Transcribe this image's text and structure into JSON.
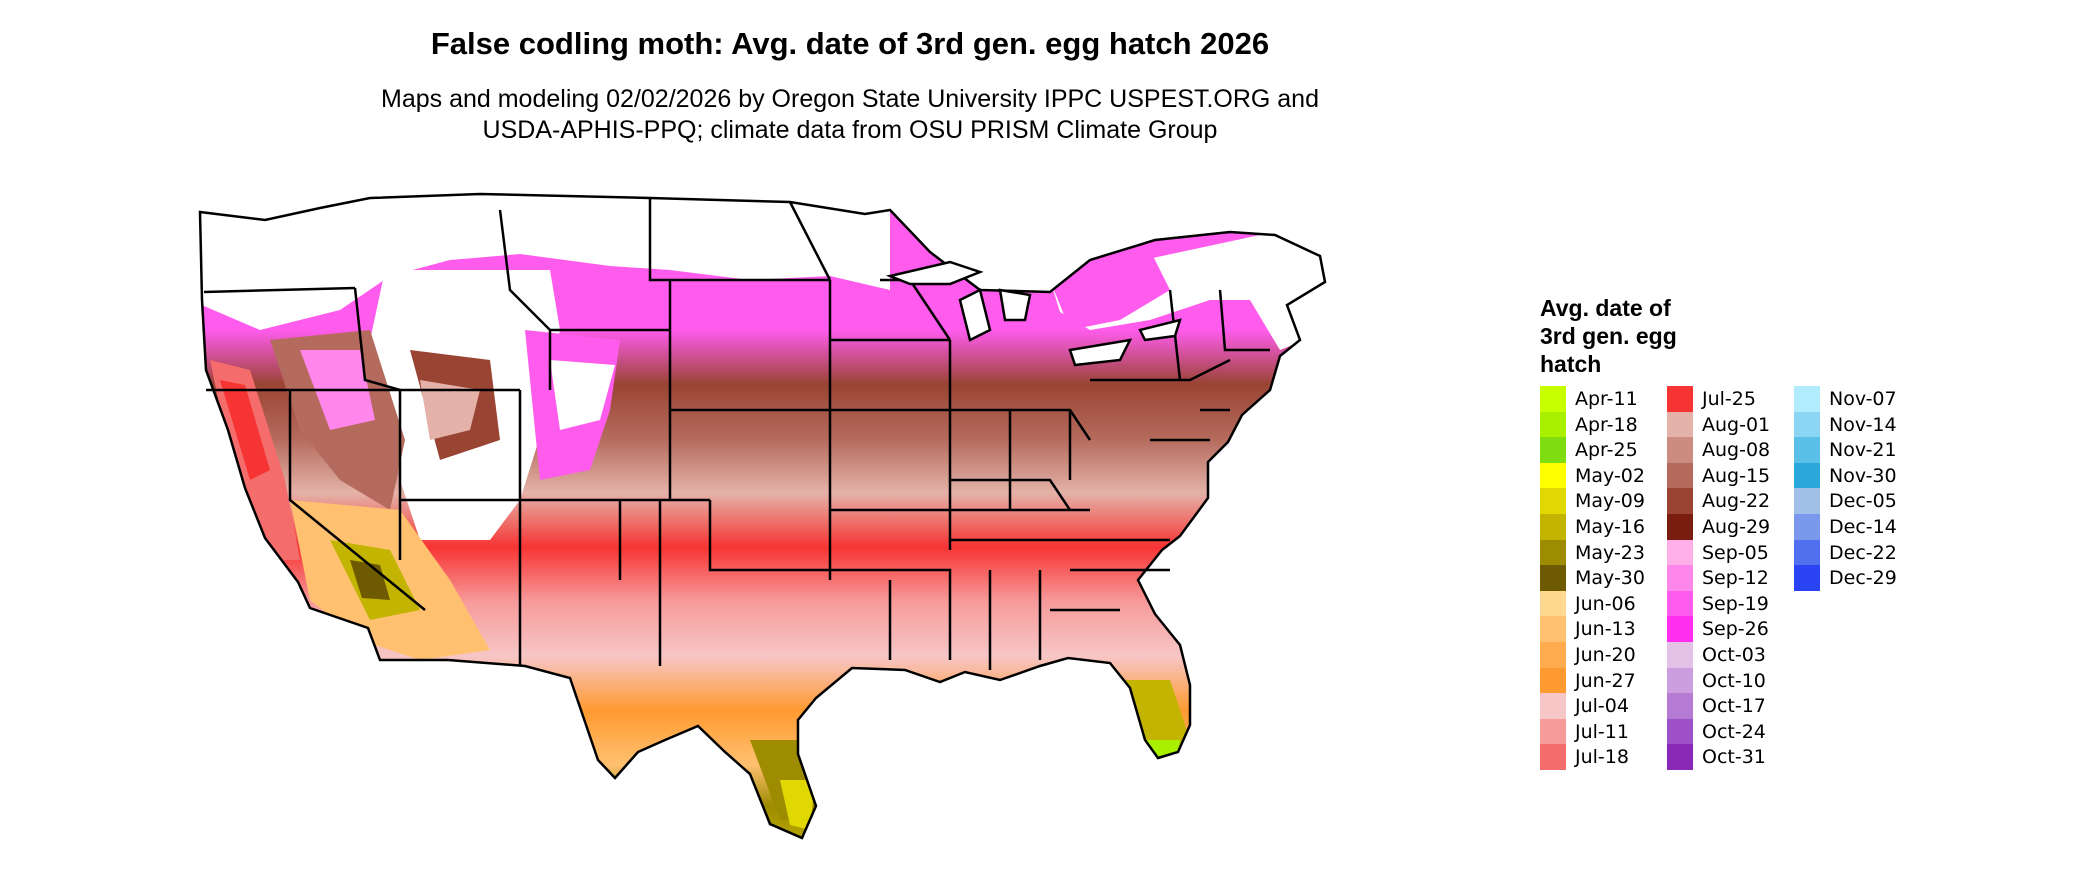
{
  "title": "False codling moth: Avg. date of 3rd gen. egg hatch 2026",
  "subtitle_line1": "Maps and modeling 02/02/2026 by Oregon State University IPPC USPEST.ORG and",
  "subtitle_line2": "USDA-APHIS-PPQ; climate data from OSU PRISM Climate Group",
  "legend": {
    "title_line1": "Avg. date of",
    "title_line2": "3rd gen. egg",
    "title_line3": "hatch",
    "columns": [
      [
        {
          "label": "Apr-11",
          "color": "#c8ff00"
        },
        {
          "label": "Apr-18",
          "color": "#a8f000"
        },
        {
          "label": "Apr-25",
          "color": "#7fdc10"
        },
        {
          "label": "May-02",
          "color": "#ffff00"
        },
        {
          "label": "May-09",
          "color": "#e0d800"
        },
        {
          "label": "May-16",
          "color": "#c2b400"
        },
        {
          "label": "May-23",
          "color": "#9e8c00"
        },
        {
          "label": "May-30",
          "color": "#6e5a00"
        },
        {
          "label": "Jun-06",
          "color": "#ffd890"
        },
        {
          "label": "Jun-13",
          "color": "#ffc070"
        },
        {
          "label": "Jun-20",
          "color": "#ffab4e"
        },
        {
          "label": "Jun-27",
          "color": "#ff9a30"
        },
        {
          "label": "Jul-04",
          "color": "#f7c6c6"
        },
        {
          "label": "Jul-11",
          "color": "#f79a9a"
        },
        {
          "label": "Jul-18",
          "color": "#f56c6c"
        }
      ],
      [
        {
          "label": "Jul-25",
          "color": "#f73434"
        },
        {
          "label": "Aug-01",
          "color": "#e4b2a8"
        },
        {
          "label": "Aug-08",
          "color": "#cc8c80"
        },
        {
          "label": "Aug-15",
          "color": "#b46a5c"
        },
        {
          "label": "Aug-22",
          "color": "#9a4434"
        },
        {
          "label": "Aug-29",
          "color": "#7a1c10"
        },
        {
          "label": "Sep-05",
          "color": "#ffb0e8"
        },
        {
          "label": "Sep-12",
          "color": "#ff86ea"
        },
        {
          "label": "Sep-19",
          "color": "#ff5cee"
        },
        {
          "label": "Sep-26",
          "color": "#ff2ef0"
        },
        {
          "label": "Oct-03",
          "color": "#e4c2e8"
        },
        {
          "label": "Oct-10",
          "color": "#cc9ee0"
        },
        {
          "label": "Oct-17",
          "color": "#b47ad4"
        },
        {
          "label": "Oct-24",
          "color": "#9e50c8"
        },
        {
          "label": "Oct-31",
          "color": "#8a28b8"
        }
      ],
      [
        {
          "label": "Nov-07",
          "color": "#b2ecff"
        },
        {
          "label": "Nov-14",
          "color": "#8ad6f4"
        },
        {
          "label": "Nov-21",
          "color": "#5ac0e8"
        },
        {
          "label": "Nov-30",
          "color": "#2aa8dc"
        },
        {
          "label": "Dec-05",
          "color": "#a0c0e8"
        },
        {
          "label": "Dec-14",
          "color": "#7a98ec"
        },
        {
          "label": "Dec-22",
          "color": "#5070f0"
        },
        {
          "label": "Dec-29",
          "color": "#2a44f4"
        }
      ]
    ]
  }
}
